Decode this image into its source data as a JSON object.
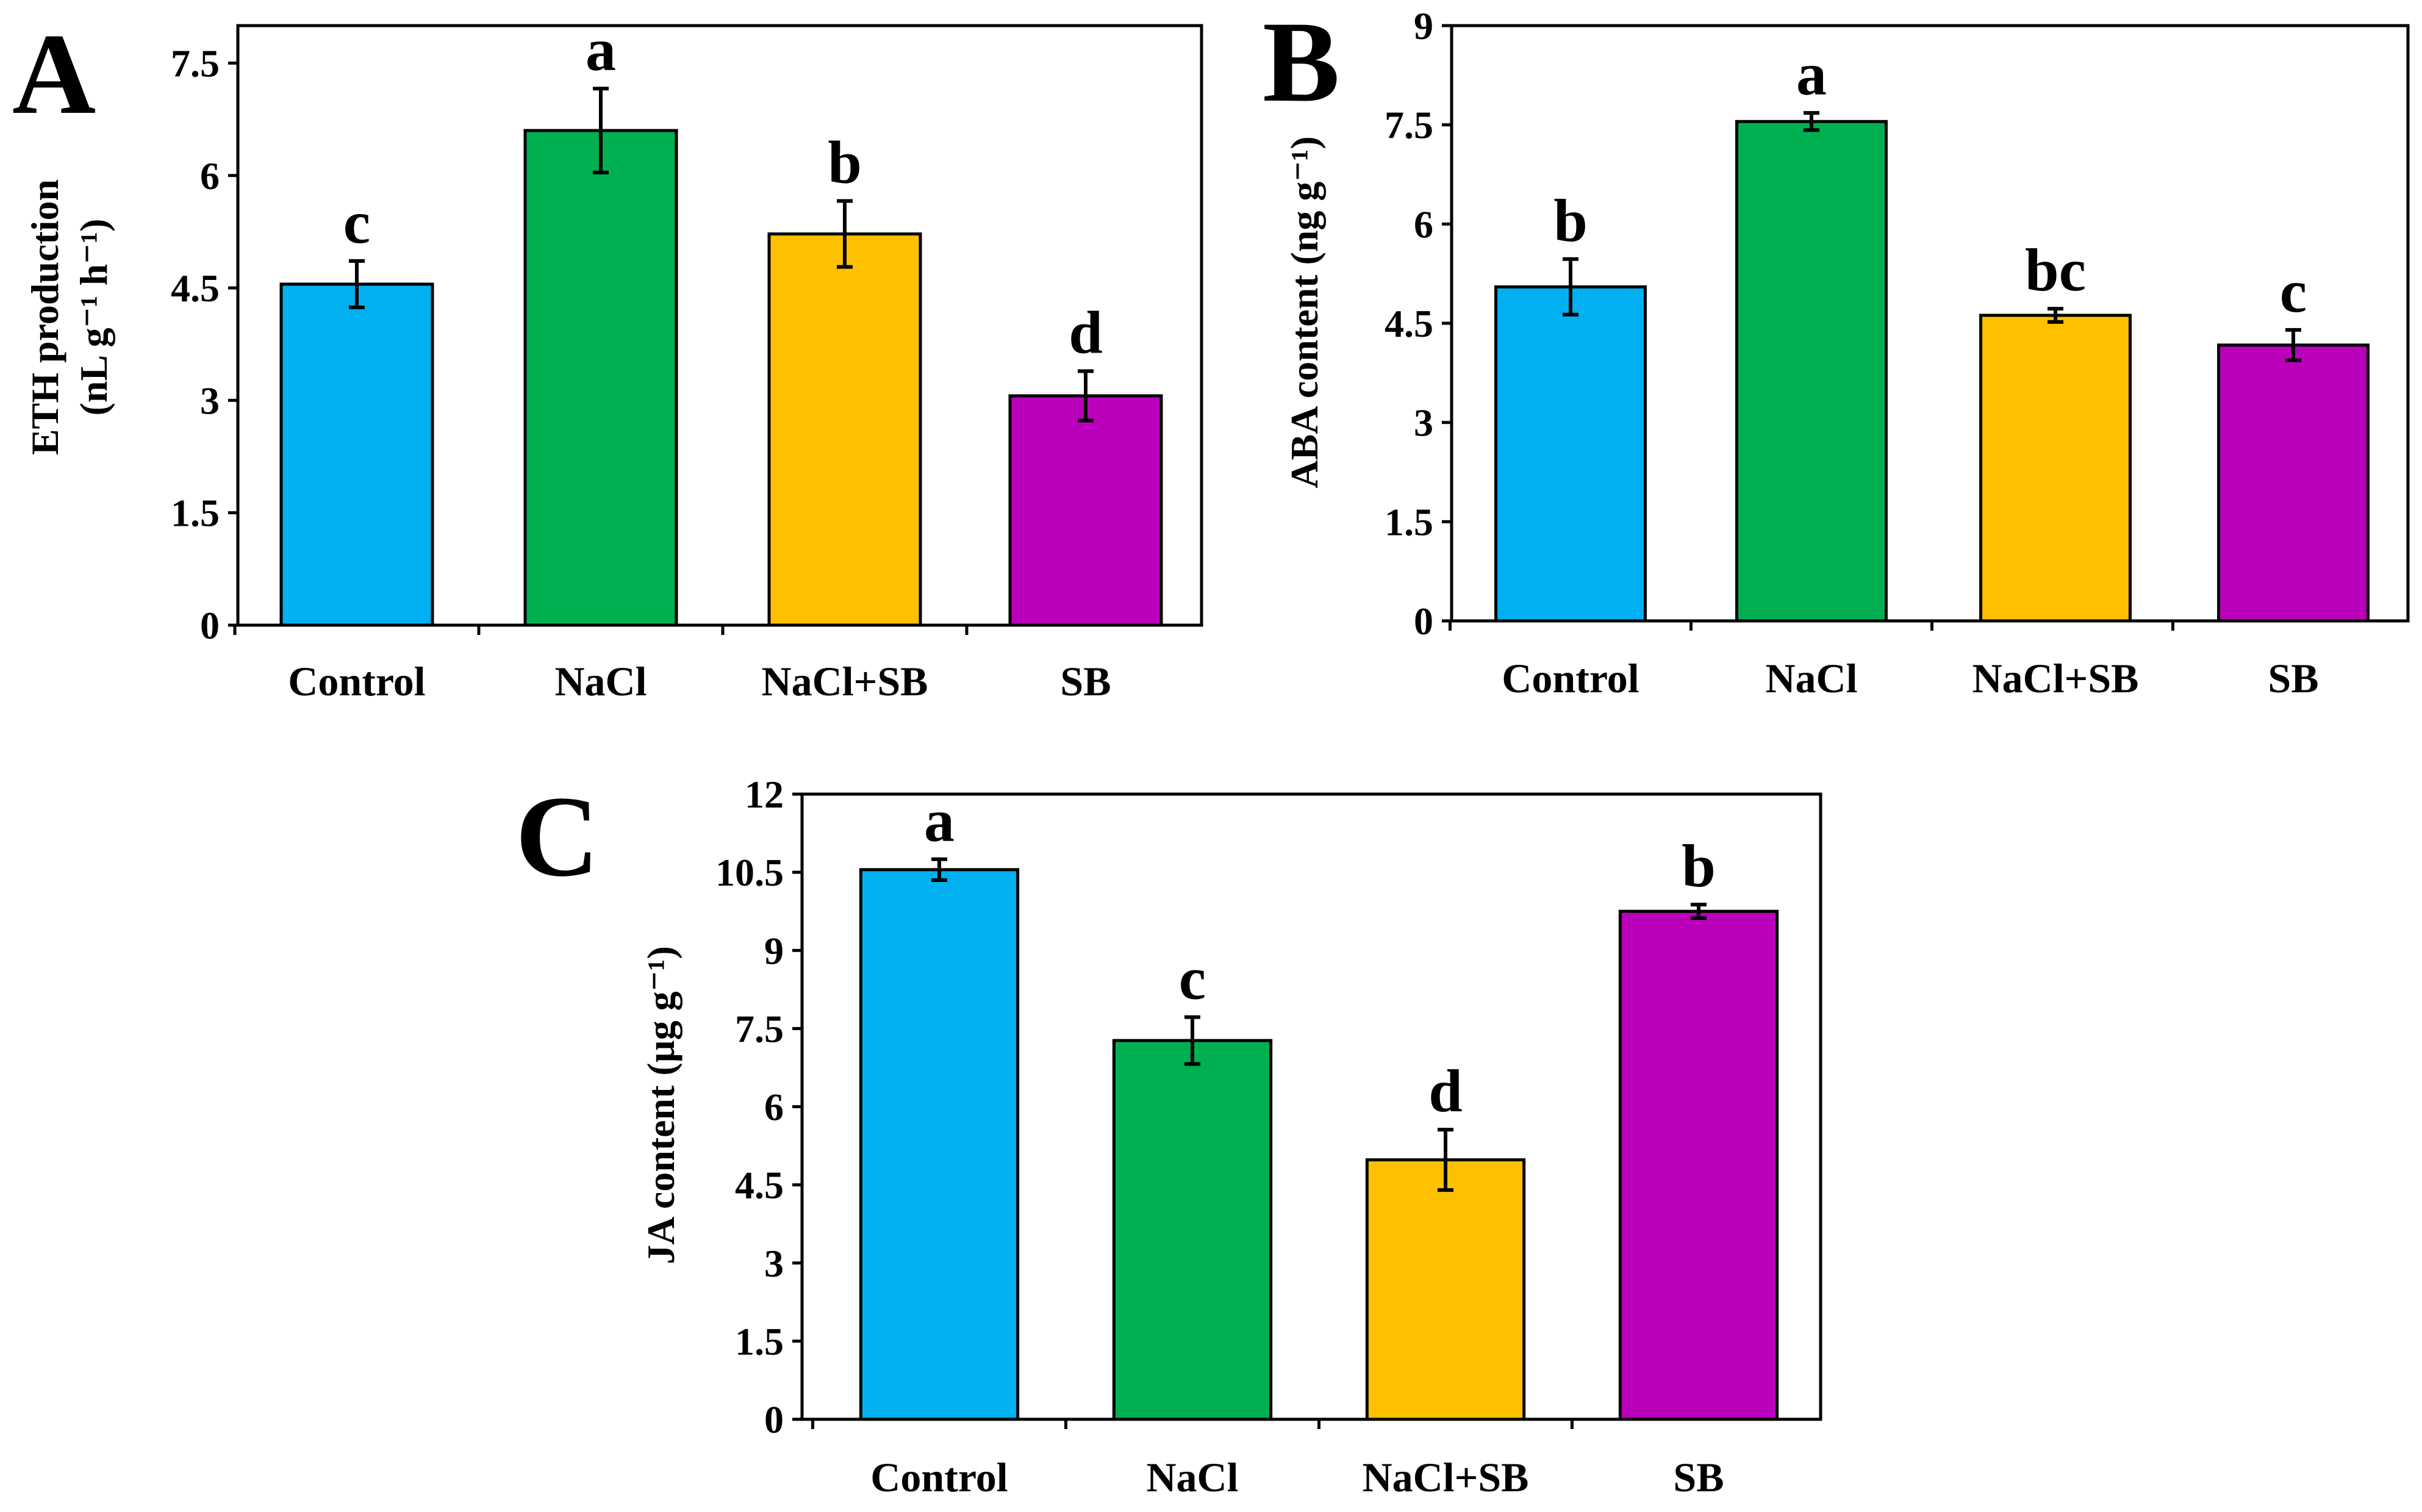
{
  "chart_data": [
    {
      "panel": "A",
      "type": "bar",
      "categories": [
        "Control",
        "NaCl",
        "NaCl+SB",
        "SB"
      ],
      "values": [
        4.55,
        6.6,
        5.22,
        3.06
      ],
      "errors": [
        0.31,
        0.56,
        0.44,
        0.33
      ],
      "significance": [
        "c",
        "a",
        "b",
        "d"
      ],
      "colors": [
        "#00B0F0",
        "#00B050",
        "#FFC000",
        "#BB00BB"
      ],
      "ylabel_line1": "ETH production",
      "ylabel_line2": "(nL g⁻¹ h⁻¹)",
      "yticks": [
        "0",
        "1.5",
        "3",
        "4.5",
        "6",
        "7.5"
      ],
      "ylim": [
        0,
        8
      ]
    },
    {
      "panel": "B",
      "type": "bar",
      "categories": [
        "Control",
        "NaCl",
        "NaCl+SB",
        "SB"
      ],
      "values": [
        5.05,
        7.55,
        4.62,
        4.17
      ],
      "errors": [
        0.42,
        0.13,
        0.1,
        0.23
      ],
      "significance": [
        "b",
        "a",
        "bc",
        "c"
      ],
      "colors": [
        "#00B0F0",
        "#00B050",
        "#FFC000",
        "#BB00BB"
      ],
      "ylabel_line1": "ABA content (ng g⁻¹)",
      "ylabel_line2": "",
      "yticks": [
        "0",
        "1.5",
        "3",
        "4.5",
        "6",
        "7.5",
        "9"
      ],
      "ylim": [
        0,
        9
      ]
    },
    {
      "panel": "C",
      "type": "bar",
      "categories": [
        "Control",
        "NaCl",
        "NaCl+SB",
        "SB"
      ],
      "values": [
        10.55,
        7.27,
        4.98,
        9.75
      ],
      "errors": [
        0.2,
        0.45,
        0.58,
        0.13
      ],
      "significance": [
        "a",
        "c",
        "d",
        "b"
      ],
      "colors": [
        "#00B0F0",
        "#00B050",
        "#FFC000",
        "#BB00BB"
      ],
      "ylabel_line1": "JA content (µg g⁻¹)",
      "ylabel_line2": "",
      "yticks": [
        "0",
        "1.5",
        "3",
        "4.5",
        "6",
        "7.5",
        "9",
        "10.5",
        "12"
      ],
      "ylim": [
        0,
        12
      ]
    }
  ]
}
